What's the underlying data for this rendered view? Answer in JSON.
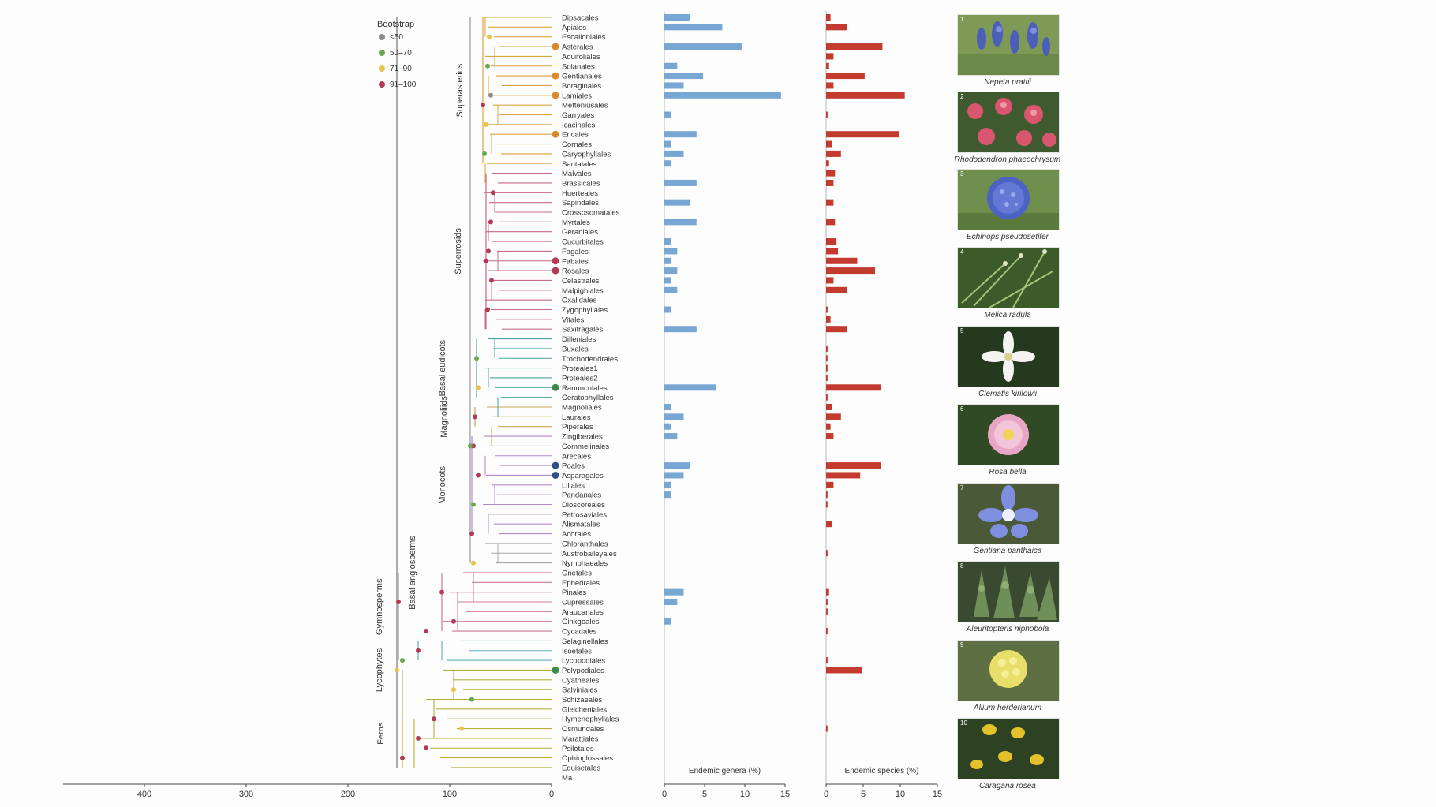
{
  "chart_data": {
    "type": "bar",
    "title": "",
    "tree": {
      "axis": {
        "label": "Ma",
        "ticks": [
          400,
          300,
          200,
          100,
          0
        ],
        "range": [
          480,
          0
        ]
      },
      "legend": {
        "title": "Bootstrap",
        "placement": "top-left",
        "entries": [
          {
            "label": "<50",
            "color": "#8a8a8a"
          },
          {
            "label": "50–70",
            "color": "#6aa84f"
          },
          {
            "label": "71–90",
            "color": "#e8c24a"
          },
          {
            "label": "91–100",
            "color": "#b23a55"
          }
        ]
      },
      "clades": [
        "Superasterids",
        "Superrosids",
        "Basal eudicots",
        "Magnoliids",
        "Monocots",
        "Basal angiosperms",
        "Gymnosperms",
        "Lycophytes",
        "Ferns"
      ]
    },
    "categories": [
      "Dipsacales",
      "Apiales",
      "Escalloniales",
      "Asterales",
      "Aquifoliales",
      "Solanales",
      "Gentianales",
      "Boraginales",
      "Lamiales",
      "Metteniusales",
      "Garryales",
      "Icacinales",
      "Ericales",
      "Cornales",
      "Caryophyllales",
      "Santalales",
      "Malvales",
      "Brassicales",
      "Huerteales",
      "Sapindales",
      "Crossosomatales",
      "Myrtales",
      "Geraniales",
      "Cucurbitales",
      "Fagales",
      "Fabales",
      "Rosales",
      "Celastrales",
      "Malpighiales",
      "Oxalidales",
      "Zygophyllales",
      "Vitales",
      "Saxifragales",
      "Dilleniales",
      "Buxales",
      "Trochodendrales",
      "Proteales1",
      "Proteales2",
      "Ranunculales",
      "Ceratophyllales",
      "Magnoliales",
      "Laurales",
      "Piperales",
      "Zingiberales",
      "Commelinales",
      "Arecales",
      "Poales",
      "Asparagales",
      "Liliales",
      "Pandanales",
      "Dioscoreales",
      "Petrosaviales",
      "Alismatales",
      "Acorales",
      "Chloranthales",
      "Austrobaileyales",
      "Nymphaeales",
      "Gnetales",
      "Ephedrales",
      "Pinales",
      "Cupressales",
      "Araucariales",
      "Ginkgoales",
      "Cycadales",
      "Selaginellales",
      "Isoetales",
      "Lycopodiales",
      "Polypodiales",
      "Cyatheales",
      "Salviniales",
      "Schizaeales",
      "Gleicheniales",
      "Hymenophyllales",
      "Osmundales",
      "Marattiales",
      "Psilotales",
      "Ophioglossales",
      "Equisetales"
    ],
    "highlighted": [
      {
        "order": "Asterales",
        "color": "#d98a2b"
      },
      {
        "order": "Gentianales",
        "color": "#d98a2b"
      },
      {
        "order": "Lamiales",
        "color": "#d98a2b"
      },
      {
        "order": "Ericales",
        "color": "#d98a2b"
      },
      {
        "order": "Fabales",
        "color": "#b23a55"
      },
      {
        "order": "Rosales",
        "color": "#b23a55"
      },
      {
        "order": "Ranunculales",
        "color": "#3b8a4a"
      },
      {
        "order": "Poales",
        "color": "#2f4e8a"
      },
      {
        "order": "Asparagales",
        "color": "#2f4e8a"
      },
      {
        "order": "Polypodiales",
        "color": "#3b8a4a"
      }
    ],
    "series": [
      {
        "name": "Endemic genera (%)",
        "xlabel": "Endemic genera (%)",
        "xlim": [
          0,
          15
        ],
        "ticks": [
          0,
          5,
          10,
          15
        ],
        "color": "#79a7d3",
        "values": [
          3.2,
          7.2,
          0,
          9.6,
          0,
          1.6,
          4.8,
          2.4,
          14.5,
          0,
          0.8,
          0,
          4.0,
          0.8,
          2.4,
          0.8,
          0,
          4.0,
          0,
          3.2,
          0,
          4.0,
          0,
          0.8,
          1.6,
          0.8,
          1.6,
          0.8,
          1.6,
          0,
          0.8,
          0,
          4.0,
          0,
          0,
          0,
          0,
          0,
          6.4,
          0,
          0.8,
          2.4,
          0.8,
          1.6,
          0,
          0,
          3.2,
          2.4,
          0.8,
          0.8,
          0,
          0,
          0,
          0,
          0,
          0,
          0,
          0,
          0,
          2.4,
          1.6,
          0,
          0.8,
          0,
          0,
          0,
          0,
          0,
          0,
          0,
          0,
          0,
          0,
          0,
          0,
          0,
          0,
          0
        ]
      },
      {
        "name": "Endemic species (%)",
        "xlabel": "Endemic species (%)",
        "xlim": [
          0,
          15
        ],
        "ticks": [
          0,
          5,
          10,
          15
        ],
        "color": "#c33a2e",
        "values": [
          0.6,
          2.8,
          0,
          7.6,
          1.0,
          0.4,
          5.2,
          1.0,
          10.6,
          0,
          0.2,
          0,
          9.8,
          0.8,
          2.0,
          0.4,
          1.2,
          1.0,
          0,
          1.0,
          0,
          1.2,
          0,
          1.4,
          1.6,
          4.2,
          6.6,
          1.0,
          2.8,
          0,
          0.2,
          0.6,
          2.8,
          0,
          0.2,
          0.2,
          0.2,
          0.2,
          7.4,
          0.2,
          0.8,
          2.0,
          0.6,
          1.0,
          0,
          0,
          7.4,
          4.6,
          1.0,
          0.2,
          0.2,
          0,
          0.8,
          0,
          0,
          0.2,
          0,
          0,
          0,
          0.4,
          0.2,
          0.2,
          0,
          0.2,
          0,
          0,
          0.2,
          4.8,
          0,
          0,
          0,
          0,
          0,
          0.2,
          0,
          0,
          0,
          0
        ]
      }
    ]
  },
  "photos": [
    {
      "num": "1",
      "caption": "Nepeta prattii"
    },
    {
      "num": "2",
      "caption": "Rhododendron phaeochrysum"
    },
    {
      "num": "3",
      "caption": "Echinops pseudosetifer"
    },
    {
      "num": "4",
      "caption": "Melica radula"
    },
    {
      "num": "5",
      "caption": "Clematis kirilowii"
    },
    {
      "num": "6",
      "caption": "Rosa bella"
    },
    {
      "num": "7",
      "caption": "Gentiana panthaica"
    },
    {
      "num": "8",
      "caption": "Aleuritopteris niphobola"
    },
    {
      "num": "9",
      "caption": "Allium herderianum"
    },
    {
      "num": "10",
      "caption": "Caragana rosea"
    }
  ]
}
